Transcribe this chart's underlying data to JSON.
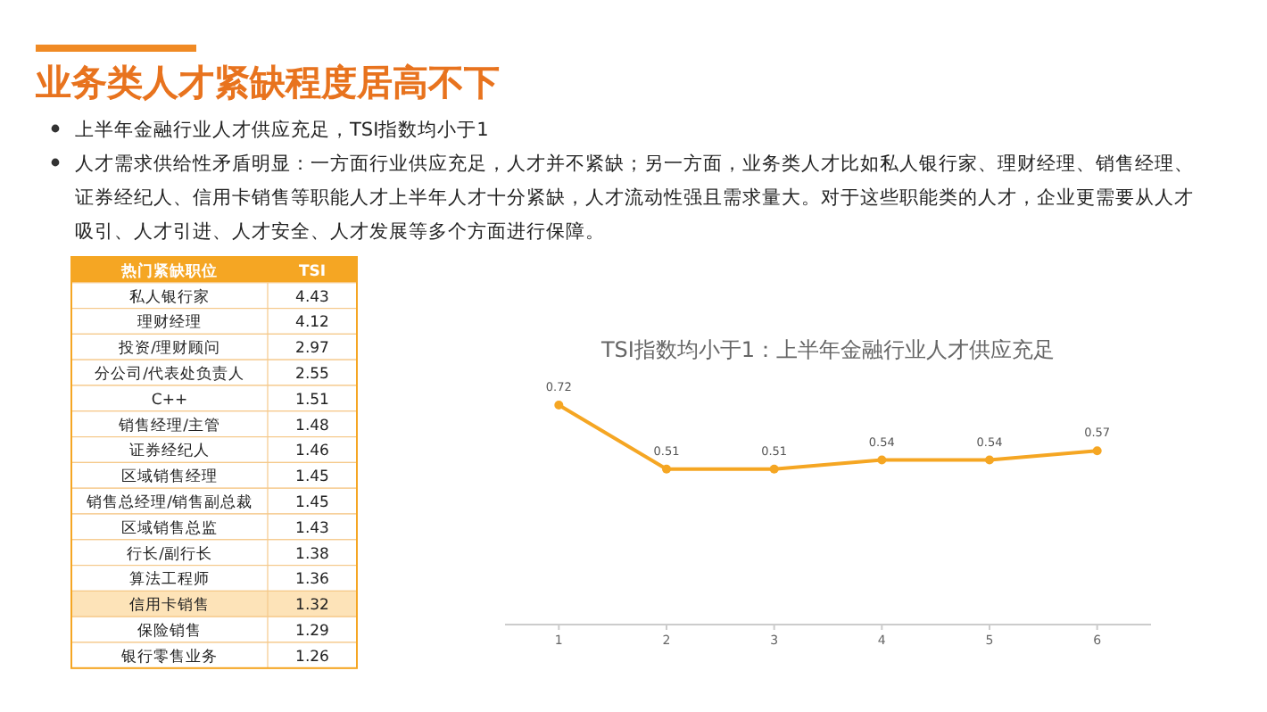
{
  "chart_data": [
    {
      "type": "other",
      "title": "业务类人才紧缺程度居高不下",
      "annotations": [
        "上半年金融行业人才供应充足，TSI指数均小于1",
        "人才需求供给性矛盾明显：一方面行业供应充足，人才并不紧缺；另一方面，业务类人才比如私人银行家、理财经理、销售经理、证券经纪人、信用卡销售等职能人才上半年人才十分紧缺，人才流动性强且需求量大。对于这些职能类的人才，企业更需要从人才吸引、人才引进、人才安全、人才发展等多个方面进行保障。"
      ],
      "xlabel": "热门紧缺职位",
      "ylabel": "TSI",
      "categories": [
        "私人银行家",
        "理财经理",
        "投资/理财顾问",
        "分公司/代表处负责人",
        "C++",
        "销售经理/主管",
        "证券经纪人",
        "区域销售经理",
        "销售总经理/销售副总裁",
        "区域销售总监",
        "行长/副行长",
        "算法工程师",
        "信用卡销售",
        "保险销售",
        "银行零售业务"
      ],
      "values": [
        4.43,
        4.12,
        2.97,
        2.55,
        1.51,
        1.48,
        1.46,
        1.45,
        1.45,
        1.43,
        1.38,
        1.36,
        1.32,
        1.29,
        1.26
      ],
      "data_labels": true,
      "colors": [
        "#ffffff",
        "#ffffff",
        "#ffffff",
        "#ffffff",
        "#ffffff",
        "#ffffff",
        "#ffffff",
        "#ffffff",
        "#ffffff",
        "#ffffff",
        "#ffffff",
        "#ffffff",
        "#fde3b8",
        "#ffffff",
        "#ffffff"
      ]
    },
    {
      "type": "line",
      "title": "TSI指数均小于1：上半年金融行业人才供应充足",
      "categories": [
        "1",
        "2",
        "3",
        "4",
        "5",
        "6"
      ],
      "values": [
        0.72,
        0.51,
        0.51,
        0.54,
        0.54,
        0.57
      ],
      "color": "#f5a623",
      "marker": "circle",
      "data_labels": true
    }
  ]
}
